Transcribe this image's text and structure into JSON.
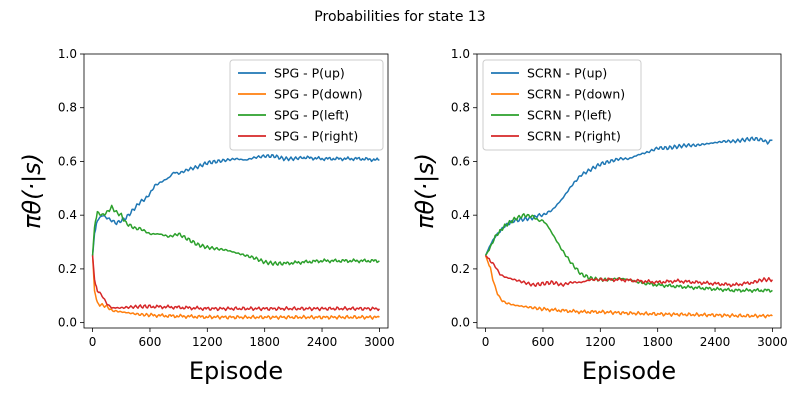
{
  "figure": {
    "suptitle": "Probabilities for state 13"
  },
  "chart_data": [
    {
      "type": "line",
      "title": "",
      "xlabel": "Episode",
      "ylabel": "πθ(·|s)",
      "xlim": [
        -90,
        3090
      ],
      "ylim": [
        -0.02,
        1.0
      ],
      "xticks": [
        0,
        600,
        1200,
        1800,
        2400,
        3000
      ],
      "yticks": [
        0.0,
        0.2,
        0.4,
        0.6,
        0.8,
        1.0
      ],
      "legend_position": "top-right",
      "series": [
        {
          "name": "SPG - P(up)",
          "color": "#1f77b4",
          "x": [
            0,
            20,
            50,
            100,
            150,
            200,
            250,
            300,
            350,
            400,
            450,
            500,
            550,
            600,
            650,
            700,
            750,
            800,
            850,
            900,
            1000,
            1100,
            1200,
            1300,
            1400,
            1500,
            1600,
            1700,
            1800,
            1900,
            2000,
            2100,
            2200,
            2400,
            2600,
            2800,
            3000
          ],
          "y": [
            0.25,
            0.33,
            0.38,
            0.4,
            0.39,
            0.38,
            0.37,
            0.38,
            0.39,
            0.41,
            0.43,
            0.45,
            0.46,
            0.48,
            0.51,
            0.52,
            0.53,
            0.54,
            0.56,
            0.555,
            0.57,
            0.58,
            0.595,
            0.6,
            0.605,
            0.61,
            0.605,
            0.615,
            0.62,
            0.62,
            0.61,
            0.61,
            0.615,
            0.61,
            0.61,
            0.61,
            0.605
          ]
        },
        {
          "name": "SPG - P(down)",
          "color": "#ff7f0e",
          "x": [
            0,
            20,
            50,
            100,
            150,
            200,
            300,
            400,
            500,
            600,
            800,
            1000,
            1200,
            1500,
            1800,
            2100,
            2400,
            2700,
            3000
          ],
          "y": [
            0.25,
            0.12,
            0.07,
            0.065,
            0.06,
            0.045,
            0.04,
            0.035,
            0.03,
            0.028,
            0.025,
            0.023,
            0.021,
            0.02,
            0.02,
            0.02,
            0.02,
            0.02,
            0.02
          ]
        },
        {
          "name": "SPG - P(left)",
          "color": "#2ca02c",
          "x": [
            0,
            20,
            50,
            100,
            150,
            200,
            250,
            300,
            350,
            400,
            450,
            500,
            550,
            600,
            700,
            800,
            900,
            1000,
            1100,
            1200,
            1300,
            1400,
            1500,
            1600,
            1700,
            1800,
            1900,
            2000,
            2200,
            2400,
            2600,
            2800,
            3000
          ],
          "y": [
            0.25,
            0.36,
            0.41,
            0.4,
            0.41,
            0.43,
            0.41,
            0.4,
            0.37,
            0.36,
            0.35,
            0.35,
            0.34,
            0.33,
            0.33,
            0.32,
            0.33,
            0.31,
            0.29,
            0.28,
            0.275,
            0.27,
            0.26,
            0.25,
            0.24,
            0.225,
            0.22,
            0.22,
            0.225,
            0.23,
            0.23,
            0.23,
            0.23
          ]
        },
        {
          "name": "SPG - P(right)",
          "color": "#d62728",
          "x": [
            0,
            20,
            50,
            100,
            150,
            200,
            300,
            400,
            500,
            600,
            800,
            1000,
            1200,
            1500,
            1800,
            2100,
            2400,
            2700,
            3000
          ],
          "y": [
            0.25,
            0.16,
            0.12,
            0.1,
            0.07,
            0.055,
            0.055,
            0.058,
            0.06,
            0.06,
            0.058,
            0.055,
            0.052,
            0.052,
            0.052,
            0.052,
            0.052,
            0.052,
            0.052
          ]
        }
      ]
    },
    {
      "type": "line",
      "title": "",
      "xlabel": "Episode",
      "ylabel": "πθ(·|s)",
      "xlim": [
        -90,
        3090
      ],
      "ylim": [
        -0.02,
        1.0
      ],
      "xticks": [
        0,
        600,
        1200,
        1800,
        2400,
        3000
      ],
      "yticks": [
        0.0,
        0.2,
        0.4,
        0.6,
        0.8,
        1.0
      ],
      "legend_position": "top-left",
      "series": [
        {
          "name": "SCRN - P(up)",
          "color": "#1f77b4",
          "x": [
            0,
            50,
            100,
            150,
            200,
            300,
            400,
            500,
            550,
            600,
            700,
            800,
            900,
            1000,
            1100,
            1200,
            1300,
            1400,
            1500,
            1600,
            1700,
            1800,
            1900,
            2000,
            2100,
            2200,
            2300,
            2400,
            2500,
            2600,
            2700,
            2800,
            2900,
            2950,
            3000
          ],
          "y": [
            0.25,
            0.29,
            0.32,
            0.34,
            0.36,
            0.38,
            0.385,
            0.39,
            0.4,
            0.4,
            0.42,
            0.46,
            0.51,
            0.55,
            0.57,
            0.59,
            0.6,
            0.61,
            0.61,
            0.625,
            0.635,
            0.65,
            0.65,
            0.655,
            0.66,
            0.66,
            0.665,
            0.67,
            0.675,
            0.675,
            0.68,
            0.685,
            0.68,
            0.67,
            0.68
          ]
        },
        {
          "name": "SCRN - P(down)",
          "color": "#ff7f0e",
          "x": [
            0,
            50,
            100,
            150,
            200,
            300,
            400,
            500,
            600,
            800,
            1000,
            1200,
            1500,
            1800,
            2100,
            2400,
            2700,
            3000
          ],
          "y": [
            0.25,
            0.2,
            0.13,
            0.09,
            0.075,
            0.065,
            0.06,
            0.055,
            0.05,
            0.045,
            0.04,
            0.04,
            0.035,
            0.032,
            0.03,
            0.028,
            0.025,
            0.025
          ]
        },
        {
          "name": "SCRN - P(left)",
          "color": "#2ca02c",
          "x": [
            0,
            50,
            100,
            150,
            200,
            300,
            400,
            500,
            550,
            600,
            650,
            700,
            750,
            800,
            900,
            1000,
            1100,
            1200,
            1300,
            1400,
            1500,
            1600,
            1800,
            2000,
            2200,
            2400,
            2600,
            2800,
            3000
          ],
          "y": [
            0.25,
            0.28,
            0.32,
            0.34,
            0.36,
            0.385,
            0.4,
            0.395,
            0.38,
            0.38,
            0.36,
            0.33,
            0.3,
            0.27,
            0.22,
            0.18,
            0.165,
            0.16,
            0.16,
            0.165,
            0.16,
            0.15,
            0.14,
            0.135,
            0.13,
            0.125,
            0.12,
            0.12,
            0.12
          ]
        },
        {
          "name": "SCRN - P(right)",
          "color": "#d62728",
          "x": [
            0,
            50,
            100,
            150,
            200,
            300,
            400,
            500,
            600,
            700,
            800,
            900,
            1000,
            1100,
            1200,
            1400,
            1600,
            1800,
            2000,
            2200,
            2400,
            2600,
            2800,
            2900,
            3000
          ],
          "y": [
            0.25,
            0.23,
            0.21,
            0.18,
            0.17,
            0.16,
            0.15,
            0.14,
            0.145,
            0.15,
            0.14,
            0.15,
            0.15,
            0.16,
            0.16,
            0.16,
            0.155,
            0.15,
            0.155,
            0.15,
            0.145,
            0.14,
            0.15,
            0.16,
            0.16
          ]
        }
      ]
    }
  ]
}
